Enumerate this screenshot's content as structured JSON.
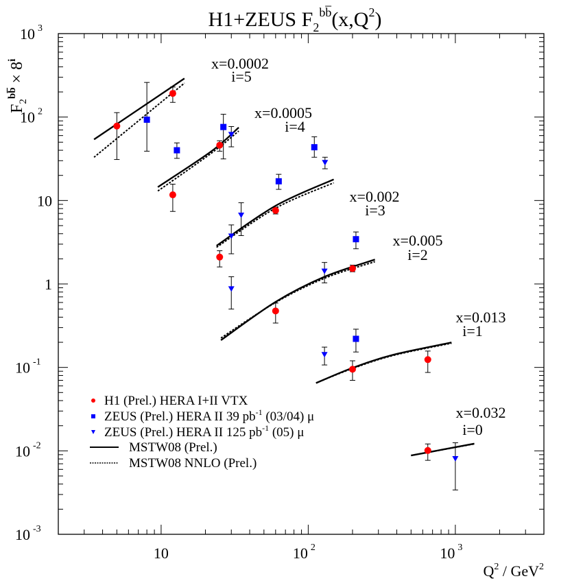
{
  "chart_data": {
    "type": "scatter",
    "title": {
      "main": "H1+ZEUS F",
      "sub": "2",
      "sup": "bb̅",
      "rest": "(x,Q",
      "sup2": "2",
      "close": ")"
    },
    "ylabel": {
      "main": "F",
      "sub": "2",
      "sup": "bb̅",
      "times": " × 8",
      "exp": "i"
    },
    "xlabel": {
      "q": "Q",
      "qexp": "2",
      "mid": " / GeV",
      "gexp": "2"
    },
    "xscale": "log",
    "yscale": "log",
    "xlim": [
      2,
      4000
    ],
    "ylim": [
      0.001,
      1000
    ],
    "xticks": [
      {
        "base": "10",
        "exp": ""
      },
      {
        "base": "10",
        "exp": "2"
      },
      {
        "base": "10",
        "exp": "3"
      }
    ],
    "xtick_values": [
      10,
      100,
      1000
    ],
    "yticks": [
      {
        "base": "10",
        "exp": "3"
      },
      {
        "base": "10",
        "exp": "2"
      },
      {
        "base": "10",
        "exp": ""
      },
      {
        "base": "1",
        "exp": ""
      },
      {
        "base": "10",
        "exp": "-1"
      },
      {
        "base": "10",
        "exp": "-2"
      },
      {
        "base": "10",
        "exp": "-3"
      }
    ],
    "ytick_values": [
      1000,
      100,
      10,
      1,
      0.1,
      0.01,
      0.001
    ],
    "grid": false,
    "legend_placement": "bottom-left",
    "colors": {
      "h1": "#ff0000",
      "zeus": "#0000ff",
      "theory": "#000000"
    },
    "bins": [
      {
        "i": 5,
        "x_label": "x=0.0002",
        "i_label": "i=5"
      },
      {
        "i": 4,
        "x_label": "x=0.0005",
        "i_label": "i=4"
      },
      {
        "i": 3,
        "x_label": "x=0.002",
        "i_label": "i=3"
      },
      {
        "i": 2,
        "x_label": "x=0.005",
        "i_label": "i=2"
      },
      {
        "i": 1,
        "x_label": "x=0.013",
        "i_label": "i=1"
      },
      {
        "i": 0,
        "x_label": "x=0.032",
        "i_label": "i=0"
      }
    ],
    "legend": [
      {
        "marker": "circle",
        "text": "H1 (Prel.) HERA I+II VTX",
        "sup": "",
        "tail": ""
      },
      {
        "marker": "square",
        "text": "ZEUS (Prel.) HERA II 39 pb",
        "sup": "-1",
        "tail": " (03/04) μ"
      },
      {
        "marker": "triangle",
        "text": "ZEUS (Prel.) HERA II 125 pb",
        "sup": "-1",
        "tail": " (05) μ"
      },
      {
        "marker": "solid",
        "text": "MSTW08 (Prel.)",
        "sup": "",
        "tail": ""
      },
      {
        "marker": "dotted",
        "text": "MSTW08 NNLO (Prel.)",
        "sup": "",
        "tail": ""
      }
    ],
    "series": [
      {
        "name": "H1 (Prel.) HERA I+II VTX",
        "marker": "circle",
        "color": "#ff0000",
        "points": [
          {
            "i": 5,
            "Q2": 5.0,
            "F": 78,
            "lo": 31,
            "hi": 113
          },
          {
            "i": 5,
            "Q2": 12,
            "F": 192,
            "lo": 150,
            "hi": 229
          },
          {
            "i": 4,
            "Q2": 12,
            "F": 11.7,
            "lo": 7.4,
            "hi": 15.7
          },
          {
            "i": 4,
            "Q2": 25,
            "F": 46,
            "lo": 39,
            "hi": 52
          },
          {
            "i": 3,
            "Q2": 25,
            "F": 2.1,
            "lo": 1.6,
            "hi": 2.5
          },
          {
            "i": 3,
            "Q2": 60,
            "F": 7.6,
            "lo": 6.9,
            "hi": 8.3
          },
          {
            "i": 2,
            "Q2": 60,
            "F": 0.475,
            "lo": 0.34,
            "hi": 0.59
          },
          {
            "i": 2,
            "Q2": 200,
            "F": 1.53,
            "lo": 1.4,
            "hi": 1.68
          },
          {
            "i": 1,
            "Q2": 200,
            "F": 0.095,
            "lo": 0.07,
            "hi": 0.12
          },
          {
            "i": 1,
            "Q2": 650,
            "F": 0.124,
            "lo": 0.087,
            "hi": 0.157
          },
          {
            "i": 0,
            "Q2": 650,
            "F": 0.0101,
            "lo": 0.0077,
            "hi": 0.0121
          }
        ]
      },
      {
        "name": "ZEUS (Prel.) HERA II 39 pb-1 (03/04) μ",
        "marker": "square",
        "color": "#0000ff",
        "points": [
          {
            "i": 5,
            "Q2": 8.0,
            "F": 93,
            "lo": 39,
            "hi": 260
          },
          {
            "i": 5,
            "Q2": 12.8,
            "F": 40,
            "lo": 32,
            "hi": 49
          },
          {
            "i": 4,
            "Q2": 26.5,
            "F": 76,
            "lo": 31.5,
            "hi": 108
          },
          {
            "i": 4,
            "Q2": 110,
            "F": 43.5,
            "lo": 33,
            "hi": 58
          },
          {
            "i": 3,
            "Q2": 63,
            "F": 17,
            "lo": 13.6,
            "hi": 20.6
          },
          {
            "i": 2,
            "Q2": 211,
            "F": 3.44,
            "lo": 2.64,
            "hi": 4.2
          },
          {
            "i": 1,
            "Q2": 211,
            "F": 0.22,
            "lo": 0.153,
            "hi": 0.287
          }
        ]
      },
      {
        "name": "ZEUS (Prel.) HERA II 125 pb-1 (05) μ",
        "marker": "triangle",
        "color": "#0000ff",
        "points": [
          {
            "i": 4,
            "Q2": 30,
            "F": 62,
            "lo": 44,
            "hi": 77
          },
          {
            "i": 4,
            "Q2": 130,
            "F": 28.6,
            "lo": 24,
            "hi": 33
          },
          {
            "i": 3,
            "Q2": 30,
            "F": 3.76,
            "lo": 2.3,
            "hi": 5.1
          },
          {
            "i": 3,
            "Q2": 35,
            "F": 6.7,
            "lo": 3.8,
            "hi": 9.4
          },
          {
            "i": 2,
            "Q2": 30,
            "F": 0.877,
            "lo": 0.5,
            "hi": 1.22
          },
          {
            "i": 2,
            "Q2": 129,
            "F": 1.43,
            "lo": 1.03,
            "hi": 1.81
          },
          {
            "i": 1,
            "Q2": 129,
            "F": 0.143,
            "lo": 0.107,
            "hi": 0.175
          },
          {
            "i": 0,
            "Q2": 1000,
            "F": 0.0081,
            "lo": 0.0034,
            "hi": 0.0125
          }
        ]
      }
    ],
    "curves": [
      {
        "name": "MSTW08 (Prel.)",
        "style": "solid",
        "bins": [
          {
            "i": 5,
            "pts": [
              [
                3.5,
                54
              ],
              [
                14.4,
                290
              ]
            ]
          },
          {
            "i": 4,
            "pts": [
              [
                9.5,
                14.5
              ],
              [
                22,
                39
              ],
              [
                33.7,
                75
              ]
            ]
          },
          {
            "i": 3,
            "pts": [
              [
                23.8,
                2.87
              ],
              [
                60,
                8.65
              ],
              [
                149,
                17.9
              ]
            ]
          },
          {
            "i": 2,
            "pts": [
              [
                25.5,
                0.212
              ],
              [
                60,
                0.61
              ],
              [
                129,
                1.22
              ],
              [
                284,
                1.96
              ]
            ]
          },
          {
            "i": 1,
            "pts": [
              [
                113,
                0.065
              ],
              [
                200,
                0.0987
              ],
              [
                378,
                0.1415
              ],
              [
                942,
                0.199
              ]
            ]
          },
          {
            "i": 0,
            "pts": [
              [
                500,
                0.0088
              ],
              [
                1346,
                0.0122
              ]
            ]
          }
        ]
      },
      {
        "name": "MSTW08 NNLO (Prel.)",
        "style": "dotted",
        "bins": [
          {
            "i": 5,
            "pts": [
              [
                3.5,
                33
              ],
              [
                14.4,
                255
              ]
            ]
          },
          {
            "i": 4,
            "pts": [
              [
                9.5,
                13
              ],
              [
                22,
                37
              ],
              [
                33.7,
                68
              ]
            ]
          },
          {
            "i": 3,
            "pts": [
              [
                23.8,
                2.75
              ],
              [
                60,
                8.1
              ],
              [
                149,
                16.3
              ]
            ]
          },
          {
            "i": 2,
            "pts": [
              [
                25.5,
                0.225
              ],
              [
                60,
                0.6
              ],
              [
                129,
                1.17
              ],
              [
                284,
                1.85
              ]
            ]
          },
          {
            "i": 1,
            "pts": [
              [
                113,
                0.065
              ],
              [
                200,
                0.097
              ],
              [
                378,
                0.139
              ],
              [
                942,
                0.195
              ]
            ]
          },
          {
            "i": 0,
            "pts": [
              [
                500,
                0.0088
              ],
              [
                1346,
                0.0121
              ]
            ]
          }
        ]
      }
    ]
  }
}
